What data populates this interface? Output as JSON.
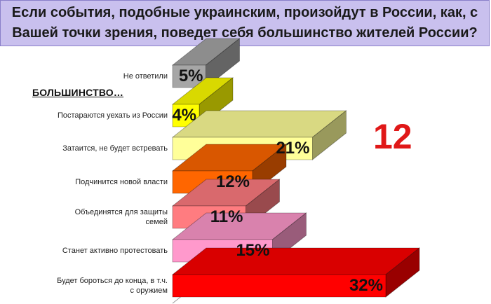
{
  "title": {
    "line1": "Если события, подобные украинским, произойдут в России, как, с",
    "line2": "Вашей точки зрения, поведет себя большинство жителей России?"
  },
  "subtitle": "БОЛЬШИНСТВО…",
  "callout": "12",
  "chart_data": {
    "type": "bar",
    "orientation": "horizontal",
    "style": "3d",
    "categories": [
      "Не ответили",
      "Постараются уехать из России",
      "Затаится, не будет встревать",
      "Подчинится новой власти",
      "Объединятся для защиты семей",
      "Станет активно протестовать",
      "Будет бороться до конца, в т.ч. с оружием"
    ],
    "category_lines": [
      [
        "Не ответили"
      ],
      [
        "Постараются уехать из России"
      ],
      [
        "Затаится, не будет встревать"
      ],
      [
        "Подчинится новой власти"
      ],
      [
        "Объединятся для защиты",
        "семей"
      ],
      [
        "Станет активно протестовать"
      ],
      [
        "Будет бороться до конца, в т.ч.",
        "с оружием"
      ]
    ],
    "values": [
      5,
      4,
      21,
      12,
      11,
      15,
      32
    ],
    "value_labels": [
      "5%",
      "4%",
      "21%",
      "12%",
      "11%",
      "15%",
      "32%"
    ],
    "colors": [
      "#a6a6a6",
      "#ffff00",
      "#ffff99",
      "#ff6600",
      "#ff7c80",
      "#ff99cc",
      "#ff0000"
    ],
    "xlim": [
      0,
      32
    ],
    "grid": false,
    "legend": "none"
  }
}
